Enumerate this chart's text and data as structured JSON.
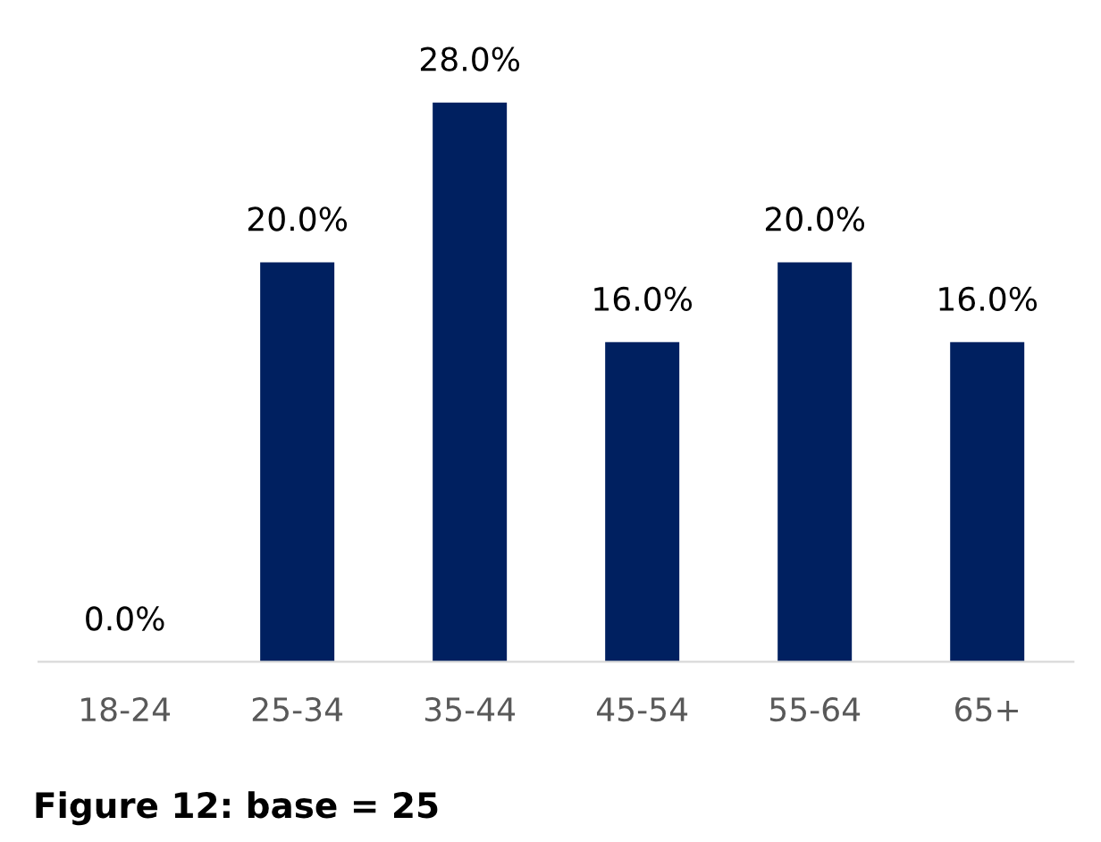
{
  "chart_data": {
    "type": "bar",
    "title": "Figure 12: base = 25",
    "categories": [
      "18-24",
      "25-34",
      "35-44",
      "45-54",
      "55-64",
      "65+"
    ],
    "values": [
      0,
      20,
      28,
      16,
      20,
      16
    ],
    "value_labels": [
      "0.0%",
      "20.0%",
      "28.0%",
      "16.0%",
      "20.0%",
      "16.0%"
    ],
    "color": "#002060",
    "tick_labels": "x",
    "grid": false,
    "legend": false
  }
}
